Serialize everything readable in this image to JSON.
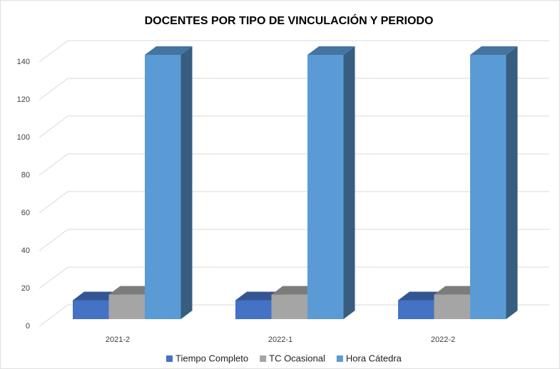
{
  "chart_data": {
    "type": "bar3d",
    "title": "DOCENTES POR TIPO DE VINCULACIÓN Y PERIODO",
    "categories": [
      "2021-2",
      "2022-1",
      "2022-2"
    ],
    "series": [
      {
        "name": "Tiempo Completo",
        "color": "#4472c4",
        "values": [
          10,
          10,
          10
        ]
      },
      {
        "name": "TC Ocasional",
        "color": "#a5a5a5",
        "values": [
          13,
          13,
          13
        ]
      },
      {
        "name": "Hora Cátedra",
        "color": "#5b9bd5",
        "values": [
          140,
          140,
          140
        ]
      }
    ],
    "ylim": [
      0,
      140
    ],
    "yticks": [
      0,
      20,
      40,
      60,
      80,
      100,
      120,
      140
    ],
    "grid": true,
    "legend": "bottom"
  }
}
